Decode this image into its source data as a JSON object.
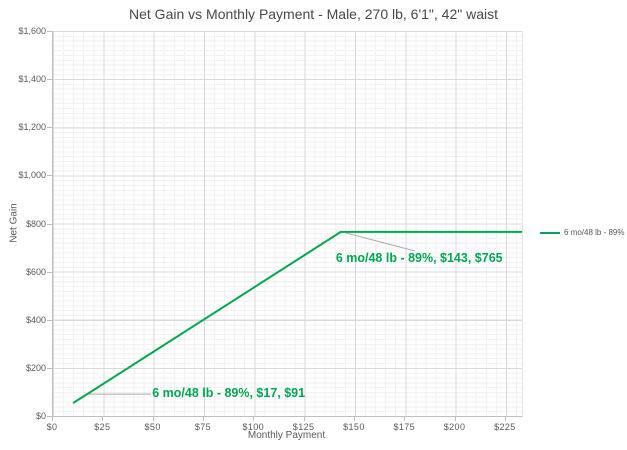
{
  "title": "Net Gain vs Monthly Payment - Male, 270 lb, 6'1\", 42\" waist",
  "colors": {
    "series_green": "#00A651",
    "gridline_major": "#d9d9d9",
    "gridline_minor": "#f2f2f2",
    "axis_line": "#bfbfbf",
    "leader_line": "#a6a6a6",
    "text_gray": "#595959",
    "title_gray": "#484848"
  },
  "chart_data": {
    "type": "line",
    "title": "Net Gain vs Monthly Payment - Male, 270 lb, 6'1\", 42\" waist",
    "xlabel": "Monthly Payment",
    "ylabel": "Net Gain",
    "xlim": [
      0,
      233
    ],
    "ylim": [
      0,
      1600
    ],
    "grid": "major and minor, both axes",
    "x_tick_values": [
      0,
      25,
      50,
      75,
      100,
      125,
      150,
      175,
      200,
      225
    ],
    "x_tick_labels": [
      "$0",
      "$25",
      "$50",
      "$75",
      "$100",
      "$125",
      "$150",
      "$175",
      "$200",
      "$225"
    ],
    "y_tick_values": [
      0,
      200,
      400,
      600,
      800,
      1000,
      1200,
      1400,
      1600
    ],
    "y_tick_labels": [
      "$0",
      "$200",
      "$400",
      "$600",
      "$800",
      "$1,000",
      "$1,200",
      "$1,400",
      "$1,600"
    ],
    "minor_x_step": 5,
    "minor_y_step": 20,
    "series": [
      {
        "name": "6 mo/48 lb - 89%",
        "color": "#00A651",
        "points": [
          [
            10,
            54
          ],
          [
            17,
            91
          ],
          [
            143,
            765
          ],
          [
            233,
            765
          ]
        ]
      }
    ],
    "annotations": [
      {
        "text": "6 mo/48 lb - 89%, $17, $91",
        "x": 17,
        "y": 91
      },
      {
        "text": "6 mo/48 lb - 89%, $143, $765",
        "x": 143,
        "y": 765
      }
    ],
    "legend": {
      "position": "right",
      "entries": [
        "6 mo/48 lb - 89%"
      ]
    }
  }
}
